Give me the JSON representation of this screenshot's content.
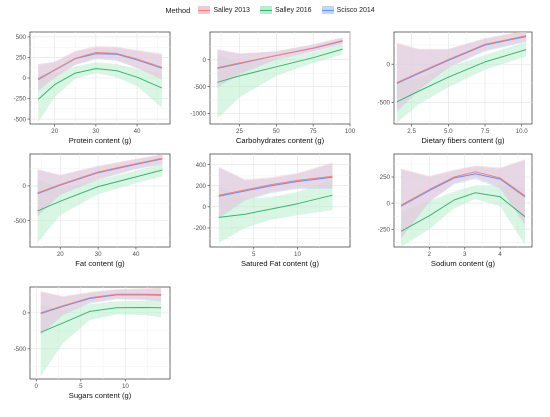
{
  "legend": {
    "title": "Method",
    "items": [
      {
        "name": "Salley 2013",
        "color": "#f08080",
        "fill": "#f3c8d4"
      },
      {
        "name": "Salley 2016",
        "color": "#3cb371",
        "fill": "#b9ecce"
      },
      {
        "name": "Scisco 2014",
        "color": "#6495ed",
        "fill": "#bcd6f3"
      }
    ]
  },
  "chart_data": [
    {
      "type": "line",
      "xlabel": "Protein content (g)",
      "xlim": [
        14,
        48
      ],
      "ylim": [
        -560,
        560
      ],
      "xticks": [
        20,
        30,
        40
      ],
      "yticks": [
        -500,
        -250,
        0,
        250,
        500
      ],
      "series": [
        {
          "name": "Salley 2013",
          "x": [
            16,
            20,
            25,
            30,
            35,
            40,
            46
          ],
          "y": [
            -10,
            100,
            240,
            310,
            300,
            230,
            130
          ],
          "lower": [
            -150,
            0,
            160,
            240,
            220,
            120,
            -20
          ],
          "upper": [
            170,
            200,
            330,
            390,
            380,
            340,
            300
          ]
        },
        {
          "name": "Salley 2016",
          "x": [
            16,
            20,
            25,
            30,
            35,
            40,
            46
          ],
          "y": [
            -260,
            -80,
            60,
            115,
            90,
            10,
            -120
          ],
          "lower": [
            -540,
            -230,
            -10,
            60,
            10,
            -100,
            -360
          ],
          "upper": [
            40,
            60,
            140,
            190,
            170,
            110,
            60
          ]
        },
        {
          "name": "Scisco 2014",
          "x": [
            16,
            20,
            25,
            30,
            35,
            40,
            46
          ],
          "y": [
            -20,
            95,
            235,
            295,
            290,
            220,
            120
          ],
          "lower": [
            -160,
            10,
            160,
            230,
            210,
            120,
            -10
          ],
          "upper": [
            160,
            190,
            320,
            370,
            370,
            330,
            280
          ]
        }
      ]
    },
    {
      "type": "line",
      "xlabel": "Carbohydrates content (g)",
      "xlim": [
        5,
        100
      ],
      "ylim": [
        -1200,
        520
      ],
      "xticks": [
        25,
        50,
        75,
        100
      ],
      "yticks": [
        -1000,
        -500,
        0
      ],
      "series": [
        {
          "name": "Salley 2013",
          "x": [
            10,
            25,
            50,
            75,
            95
          ],
          "y": [
            -150,
            -60,
            80,
            220,
            360
          ],
          "lower": [
            -500,
            -250,
            10,
            160,
            300
          ],
          "upper": [
            200,
            120,
            160,
            290,
            420
          ]
        },
        {
          "name": "Salley 2016",
          "x": [
            10,
            25,
            50,
            75,
            95
          ],
          "y": [
            -420,
            -300,
            -130,
            40,
            200
          ],
          "lower": [
            -1100,
            -700,
            -300,
            -60,
            100
          ],
          "upper": [
            100,
            -50,
            20,
            140,
            290
          ]
        },
        {
          "name": "Scisco 2014",
          "x": [
            10,
            25,
            50,
            75,
            95
          ],
          "y": [
            -160,
            -70,
            80,
            215,
            350
          ],
          "lower": [
            -520,
            -270,
            0,
            150,
            290
          ],
          "upper": [
            190,
            110,
            160,
            280,
            410
          ]
        }
      ]
    },
    {
      "type": "line",
      "xlabel": "Dietary fibers content (g)",
      "xlim": [
        1.3,
        10.7
      ],
      "ylim": [
        -780,
        420
      ],
      "xticks": [
        2.5,
        5.0,
        7.5,
        10.0
      ],
      "yticks": [
        -500,
        0
      ],
      "series": [
        {
          "name": "Salley 2013",
          "x": [
            1.5,
            3,
            5,
            7.5,
            10.3
          ],
          "y": [
            -240,
            -110,
            60,
            260,
            370
          ],
          "lower": [
            -600,
            -330,
            -40,
            180,
            300
          ],
          "upper": [
            280,
            200,
            200,
            340,
            440
          ]
        },
        {
          "name": "Salley 2016",
          "x": [
            1.5,
            3,
            5,
            7.5,
            10.3
          ],
          "y": [
            -490,
            -350,
            -170,
            30,
            190
          ],
          "lower": [
            -760,
            -520,
            -300,
            -70,
            100
          ],
          "upper": [
            -240,
            -180,
            -40,
            120,
            290
          ]
        },
        {
          "name": "Scisco 2014",
          "x": [
            1.5,
            3,
            5,
            7.5,
            10.3
          ],
          "y": [
            -250,
            -120,
            50,
            250,
            360
          ],
          "lower": [
            -620,
            -340,
            -50,
            170,
            290
          ],
          "upper": [
            260,
            190,
            190,
            330,
            430
          ]
        }
      ]
    },
    {
      "type": "line",
      "xlabel": "Fat content (g)",
      "xlim": [
        12,
        49
      ],
      "ylim": [
        -880,
        460
      ],
      "xticks": [
        20,
        30,
        40
      ],
      "yticks": [
        -500,
        0
      ],
      "series": [
        {
          "name": "Salley 2013",
          "x": [
            14,
            20,
            30,
            40,
            47
          ],
          "y": [
            -100,
            20,
            200,
            320,
            400
          ],
          "lower": [
            -420,
            -120,
            100,
            250,
            320
          ],
          "upper": [
            240,
            160,
            290,
            390,
            460
          ]
        },
        {
          "name": "Salley 2016",
          "x": [
            14,
            20,
            30,
            40,
            47
          ],
          "y": [
            -360,
            -220,
            -10,
            130,
            230
          ],
          "lower": [
            -820,
            -420,
            -120,
            40,
            140
          ],
          "upper": [
            100,
            -40,
            90,
            220,
            320
          ]
        },
        {
          "name": "Scisco 2014",
          "x": [
            14,
            20,
            30,
            40,
            47
          ],
          "y": [
            -110,
            10,
            190,
            310,
            390
          ],
          "lower": [
            -440,
            -130,
            90,
            240,
            310
          ],
          "upper": [
            230,
            150,
            280,
            380,
            450
          ]
        }
      ]
    },
    {
      "type": "line",
      "xlabel": "Satured Fat content (g)",
      "xlim": [
        0,
        16
      ],
      "ylim": [
        -380,
        500
      ],
      "xticks": [
        5,
        10
      ],
      "yticks": [
        -200,
        0,
        200,
        400
      ],
      "series": [
        {
          "name": "Salley 2013",
          "x": [
            1,
            4,
            7,
            10,
            14
          ],
          "y": [
            110,
            160,
            210,
            250,
            290
          ],
          "lower": [
            -100,
            70,
            140,
            180,
            180
          ],
          "upper": [
            380,
            260,
            280,
            320,
            420
          ]
        },
        {
          "name": "Salley 2016",
          "x": [
            1,
            4,
            7,
            10,
            14
          ],
          "y": [
            -100,
            -70,
            -20,
            30,
            110
          ],
          "lower": [
            -340,
            -200,
            -120,
            -80,
            -30
          ],
          "upper": [
            200,
            80,
            90,
            140,
            260
          ]
        },
        {
          "name": "Scisco 2014",
          "x": [
            1,
            4,
            7,
            10,
            14
          ],
          "y": [
            100,
            150,
            200,
            240,
            280
          ],
          "lower": [
            -110,
            60,
            130,
            170,
            170
          ],
          "upper": [
            370,
            250,
            270,
            310,
            410
          ]
        }
      ]
    },
    {
      "type": "line",
      "xlabel": "Sodium content (g)",
      "xlim": [
        1,
        4.9
      ],
      "ylim": [
        -420,
        470
      ],
      "xticks": [
        2,
        3,
        4
      ],
      "yticks": [
        -250,
        0,
        250
      ],
      "series": [
        {
          "name": "Salley 2013",
          "x": [
            1.2,
            2,
            2.7,
            3.3,
            4,
            4.7
          ],
          "y": [
            -20,
            130,
            250,
            300,
            240,
            70
          ],
          "lower": [
            -330,
            20,
            190,
            250,
            150,
            -200
          ],
          "upper": [
            330,
            260,
            320,
            360,
            340,
            420
          ]
        },
        {
          "name": "Salley 2016",
          "x": [
            1.2,
            2,
            2.7,
            3.3,
            4,
            4.7
          ],
          "y": [
            -270,
            -120,
            30,
            100,
            60,
            -130
          ],
          "lower": [
            -420,
            -250,
            -50,
            40,
            -30,
            -400
          ],
          "upper": [
            -80,
            20,
            110,
            170,
            170,
            150
          ]
        },
        {
          "name": "Scisco 2014",
          "x": [
            1.2,
            2,
            2.7,
            3.3,
            4,
            4.7
          ],
          "y": [
            -30,
            120,
            240,
            280,
            230,
            60
          ],
          "lower": [
            -340,
            10,
            180,
            230,
            140,
            -210
          ],
          "upper": [
            320,
            250,
            310,
            350,
            330,
            410
          ]
        }
      ]
    },
    {
      "type": "line",
      "xlabel": "Sugars content (g)",
      "xlim": [
        -0.7,
        15
      ],
      "ylim": [
        -920,
        360
      ],
      "xticks": [
        0,
        5,
        10
      ],
      "yticks": [
        -500,
        0
      ],
      "series": [
        {
          "name": "Salley 2013",
          "x": [
            0.5,
            3,
            6,
            9,
            12,
            14
          ],
          "y": [
            0,
            100,
            210,
            260,
            260,
            255
          ],
          "lower": [
            -300,
            -20,
            140,
            200,
            190,
            170
          ],
          "upper": [
            300,
            230,
            290,
            330,
            340,
            350
          ]
        },
        {
          "name": "Salley 2016",
          "x": [
            0.5,
            3,
            6,
            9,
            12,
            14
          ],
          "y": [
            -270,
            -140,
            20,
            70,
            75,
            70
          ],
          "lower": [
            -880,
            -420,
            -100,
            -20,
            -30,
            -60
          ],
          "upper": [
            120,
            40,
            120,
            160,
            170,
            190
          ]
        },
        {
          "name": "Scisco 2014",
          "x": [
            0.5,
            3,
            6,
            9,
            12,
            14
          ],
          "y": [
            -10,
            90,
            200,
            250,
            250,
            245
          ],
          "lower": [
            -310,
            -30,
            130,
            190,
            180,
            160
          ],
          "upper": [
            290,
            220,
            280,
            320,
            330,
            340
          ]
        }
      ]
    }
  ]
}
